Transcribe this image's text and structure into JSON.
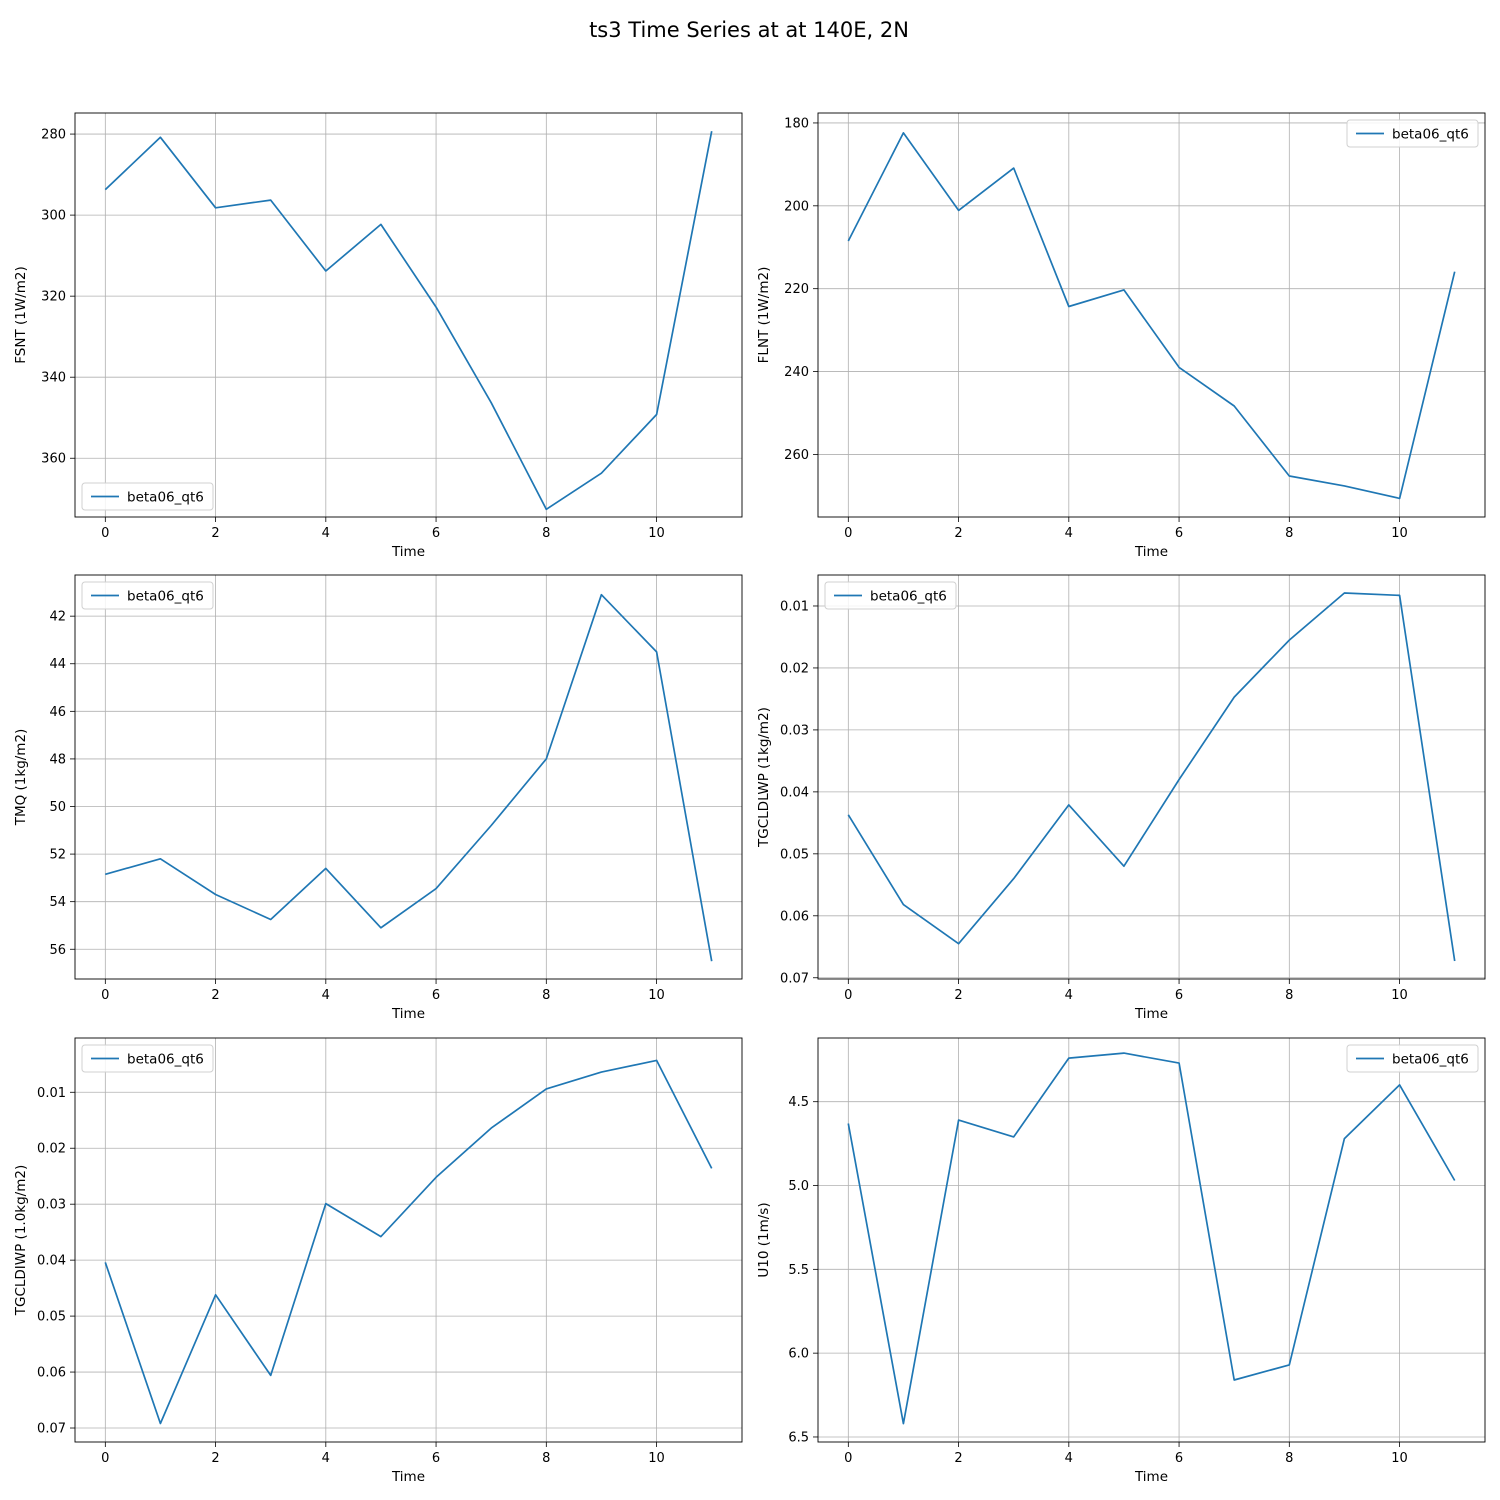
{
  "figure": {
    "title": "ts3 Time Series at at 140E, 2N"
  },
  "chart_data": [
    {
      "type": "line",
      "title": "",
      "xlabel": "Time",
      "ylabel": "FSNT (1W/m2)",
      "y_inverted": true,
      "xlim": [
        -0.55,
        11.55
      ],
      "ylim": [
        374.5,
        274.8
      ],
      "xticks": [
        0,
        2,
        4,
        6,
        8,
        10
      ],
      "yticks": [
        280,
        300,
        320,
        340,
        360
      ],
      "grid": true,
      "legend_position": "lower-left",
      "series": [
        {
          "name": "beta06_qt6",
          "color": "#1f77b4",
          "x": [
            0,
            1,
            2,
            3,
            4,
            5,
            6,
            7,
            8,
            9,
            10,
            11
          ],
          "values": [
            293.7,
            280.8,
            298.2,
            296.3,
            313.8,
            302.3,
            322.7,
            346.3,
            372.6,
            363.7,
            349.2,
            279.3
          ]
        }
      ]
    },
    {
      "type": "line",
      "title": "",
      "xlabel": "Time",
      "ylabel": "FLNT (1W/m2)",
      "y_inverted": true,
      "xlim": [
        -0.55,
        11.55
      ],
      "ylim": [
        275.1,
        177.6
      ],
      "xticks": [
        0,
        2,
        4,
        6,
        8,
        10
      ],
      "yticks": [
        180,
        200,
        220,
        240,
        260
      ],
      "grid": true,
      "legend_position": "upper-right",
      "series": [
        {
          "name": "beta06_qt6",
          "color": "#1f77b4",
          "x": [
            0,
            1,
            2,
            3,
            4,
            5,
            6,
            7,
            8,
            9,
            10,
            11
          ],
          "values": [
            208.5,
            182.4,
            201.1,
            190.9,
            224.3,
            220.3,
            239.0,
            248.3,
            265.2,
            267.6,
            270.6,
            215.9
          ]
        }
      ]
    },
    {
      "type": "line",
      "title": "",
      "xlabel": "Time",
      "ylabel": "TMQ (1kg/m2)",
      "y_inverted": true,
      "xlim": [
        -0.55,
        11.55
      ],
      "ylim": [
        57.25,
        40.27
      ],
      "xticks": [
        0,
        2,
        4,
        6,
        8,
        10
      ],
      "yticks": [
        42,
        44,
        46,
        48,
        50,
        52,
        54,
        56
      ],
      "grid": true,
      "legend_position": "upper-left",
      "series": [
        {
          "name": "beta06_qt6",
          "color": "#1f77b4",
          "x": [
            0,
            1,
            2,
            3,
            4,
            5,
            6,
            7,
            8,
            9,
            10,
            11
          ],
          "values": [
            52.85,
            52.2,
            53.7,
            54.75,
            52.6,
            55.1,
            53.45,
            50.8,
            48.0,
            41.1,
            43.5,
            56.5
          ]
        }
      ]
    },
    {
      "type": "line",
      "title": "",
      "xlabel": "Time",
      "ylabel": "TGCLDLWP (1kg/m2)",
      "y_inverted": true,
      "xlim": [
        -0.55,
        11.55
      ],
      "ylim": [
        0.0702,
        0.005
      ],
      "xticks": [
        0,
        2,
        4,
        6,
        8,
        10
      ],
      "yticks": [
        0.01,
        0.02,
        0.03,
        0.04,
        0.05,
        0.06,
        0.07
      ],
      "grid": true,
      "legend_position": "upper-left",
      "series": [
        {
          "name": "beta06_qt6",
          "color": "#1f77b4",
          "x": [
            0,
            1,
            2,
            3,
            4,
            5,
            6,
            7,
            8,
            9,
            10,
            11
          ],
          "values": [
            0.0437,
            0.0582,
            0.0645,
            0.054,
            0.0421,
            0.052,
            0.038,
            0.0247,
            0.0155,
            0.0079,
            0.0083,
            0.0673
          ]
        }
      ]
    },
    {
      "type": "line",
      "title": "",
      "xlabel": "Time",
      "ylabel": "TGCLDIWP (1.0kg/m2)",
      "y_inverted": true,
      "xlim": [
        -0.55,
        11.55
      ],
      "ylim": [
        0.0725,
        0.0003
      ],
      "xticks": [
        0,
        2,
        4,
        6,
        8,
        10
      ],
      "yticks": [
        0.01,
        0.02,
        0.03,
        0.04,
        0.05,
        0.06,
        0.07
      ],
      "grid": true,
      "legend_position": "upper-left",
      "series": [
        {
          "name": "beta06_qt6",
          "color": "#1f77b4",
          "x": [
            0,
            1,
            2,
            3,
            4,
            5,
            6,
            7,
            8,
            9,
            10,
            11
          ],
          "values": [
            0.0404,
            0.0692,
            0.0462,
            0.0606,
            0.0299,
            0.0358,
            0.0252,
            0.0164,
            0.0094,
            0.0064,
            0.0043,
            0.0236
          ]
        }
      ]
    },
    {
      "type": "line",
      "title": "",
      "xlabel": "Time",
      "ylabel": "U10 (1m/s)",
      "y_inverted": true,
      "xlim": [
        -0.55,
        11.55
      ],
      "ylim": [
        6.53,
        4.12
      ],
      "xticks": [
        0,
        2,
        4,
        6,
        8,
        10
      ],
      "yticks": [
        4.5,
        5.0,
        5.5,
        6.0,
        6.5
      ],
      "ytick_format": 1,
      "grid": true,
      "legend_position": "upper-right",
      "series": [
        {
          "name": "beta06_qt6",
          "color": "#1f77b4",
          "x": [
            0,
            1,
            2,
            3,
            4,
            5,
            6,
            7,
            8,
            9,
            10,
            11
          ],
          "values": [
            4.63,
            6.42,
            4.61,
            4.71,
            4.24,
            4.21,
            4.27,
            6.16,
            6.07,
            4.72,
            4.4,
            4.97
          ]
        }
      ]
    }
  ]
}
